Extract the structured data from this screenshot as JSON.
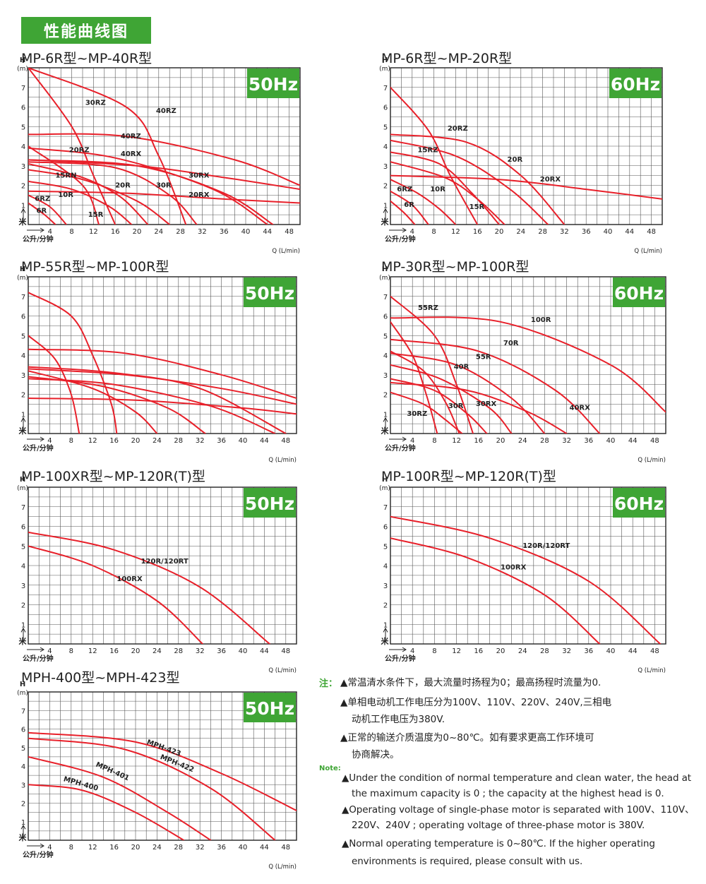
{
  "header": {
    "title": "性能曲线图"
  },
  "notes": {
    "cn_tag": "注：",
    "en_tag": "Note:",
    "cn": [
      [
        "▲常温清水条件下，最大流量时扬程为0；最高扬程时流量为0."
      ],
      [
        "▲单相电动机工作电压分为100V、110V、220V、240V,三相电",
        "动机工作电压为380V."
      ],
      [
        "▲正常的输送介质温度为0~80℃。如有要求更高工作环境可",
        "协商解决。"
      ]
    ],
    "en": [
      [
        "▲Under the condition of normal temperature and clean water, the head at",
        "the maximum capacity is 0 ; the capacity at the highest head is 0."
      ],
      [
        "▲Operating voltage of single-phase motor is separated with 100V、110V、",
        "220V、240V ; operating voltage of three-phase motor is 380V."
      ],
      [
        "▲Normal operating temperature is 0~80℃. If the higher operating",
        "environments is required,  please consult with us."
      ]
    ]
  },
  "chart_data": [
    {
      "id": "c1",
      "type": "line",
      "title": "MP-6R型~MP-40R型",
      "badge": "50Hz",
      "y_label_top": "H",
      "y_unit": "(m)",
      "y_label_bottom": "米",
      "x_label_left": "公升/分钟",
      "x_label_right": "Q (L/min)",
      "xlim": [
        0,
        50
      ],
      "ylim": [
        0,
        8
      ],
      "xticks": [
        4,
        8,
        12,
        16,
        20,
        24,
        28,
        32,
        36,
        40,
        44,
        48
      ],
      "yticks": [
        1,
        2,
        3,
        4,
        5,
        6,
        7
      ],
      "labels": [
        {
          "text": "30RZ",
          "x": 10.5,
          "y": 6.1
        },
        {
          "text": "40RZ",
          "x": 23.5,
          "y": 5.7
        },
        {
          "text": "40RZ",
          "x": 17,
          "y": 4.4
        },
        {
          "text": "20RZ",
          "x": 7.5,
          "y": 3.7
        },
        {
          "text": "40RX",
          "x": 17,
          "y": 3.5
        },
        {
          "text": "15RN",
          "x": 5,
          "y": 2.4
        },
        {
          "text": "30RX",
          "x": 29.5,
          "y": 2.4
        },
        {
          "text": "20R",
          "x": 16,
          "y": 1.9
        },
        {
          "text": "30R",
          "x": 23.5,
          "y": 1.9
        },
        {
          "text": "10R",
          "x": 5.5,
          "y": 1.4
        },
        {
          "text": "20RX",
          "x": 29.5,
          "y": 1.4
        },
        {
          "text": "6RZ",
          "x": 1.2,
          "y": 1.2
        },
        {
          "text": "6R",
          "x": 1.5,
          "y": 0.6
        },
        {
          "text": "15R",
          "x": 11,
          "y": 0.4
        }
      ],
      "series": [
        {
          "x": [
            0,
            8,
            12,
            16
          ],
          "y": [
            8,
            5,
            2.5,
            0
          ]
        },
        {
          "x": [
            0,
            18,
            24,
            29
          ],
          "y": [
            8,
            6,
            3.5,
            0
          ]
        },
        {
          "x": [
            0,
            10,
            13
          ],
          "y": [
            4,
            2,
            0
          ]
        },
        {
          "x": [
            0,
            10,
            17,
            22
          ],
          "y": [
            3.1,
            2.4,
            1.4,
            0
          ]
        },
        {
          "x": [
            0,
            18,
            38,
            50
          ],
          "y": [
            4.6,
            4.5,
            3.3,
            2
          ]
        },
        {
          "x": [
            0,
            20,
            36,
            45
          ],
          "y": [
            3.3,
            3,
            1.6,
            0
          ]
        },
        {
          "x": [
            0,
            16,
            26,
            31
          ],
          "y": [
            3.2,
            2.9,
            1.5,
            0
          ]
        },
        {
          "x": [
            0,
            8,
            15,
            19
          ],
          "y": [
            2.2,
            1.8,
            0.9,
            0
          ]
        },
        {
          "x": [
            0,
            10,
            20,
            26
          ],
          "y": [
            2.8,
            2.3,
            1.2,
            0
          ]
        },
        {
          "x": [
            0,
            4,
            7
          ],
          "y": [
            1.5,
            0.9,
            0
          ]
        },
        {
          "x": [
            0,
            3,
            5
          ],
          "y": [
            1.1,
            0.5,
            0
          ]
        },
        {
          "x": [
            0,
            20,
            36,
            50
          ],
          "y": [
            3.3,
            3,
            2.4,
            1.8
          ]
        },
        {
          "x": [
            0,
            18,
            36,
            50
          ],
          "y": [
            1.7,
            1.6,
            1.3,
            1.1
          ]
        },
        {
          "x": [
            0,
            16,
            34,
            44
          ],
          "y": [
            3.9,
            3.4,
            1.8,
            0
          ]
        }
      ]
    },
    {
      "id": "c2",
      "type": "line",
      "title": "MP-6R型~MP-20R型",
      "badge": "60Hz",
      "y_label_top": "H",
      "y_unit": "(m)",
      "y_label_bottom": "米",
      "x_label_left": "公升/分钟",
      "x_label_right": "Q (L/min)",
      "xlim": [
        0,
        50
      ],
      "ylim": [
        0,
        8
      ],
      "xticks": [
        4,
        8,
        12,
        16,
        20,
        24,
        28,
        32,
        36,
        40,
        44,
        48
      ],
      "yticks": [
        1,
        2,
        3,
        4,
        5,
        6,
        7
      ],
      "labels": [
        {
          "text": "20RZ",
          "x": 10.5,
          "y": 4.8
        },
        {
          "text": "15RZ",
          "x": 5,
          "y": 3.7
        },
        {
          "text": "20R",
          "x": 21.5,
          "y": 3.2
        },
        {
          "text": "20RX",
          "x": 27.5,
          "y": 2.2
        },
        {
          "text": "6RZ",
          "x": 1.2,
          "y": 1.7
        },
        {
          "text": "10R",
          "x": 7.3,
          "y": 1.7
        },
        {
          "text": "6R",
          "x": 2.5,
          "y": 0.9
        },
        {
          "text": "15R",
          "x": 14.5,
          "y": 0.8
        }
      ],
      "series": [
        {
          "x": [
            0,
            7,
            11,
            16
          ],
          "y": [
            7,
            4.8,
            2.5,
            0
          ]
        },
        {
          "x": [
            0,
            14,
            24,
            32
          ],
          "y": [
            4.6,
            4.2,
            2.5,
            0
          ]
        },
        {
          "x": [
            0,
            9,
            15,
            20
          ],
          "y": [
            3.7,
            3.1,
            1.6,
            0
          ]
        },
        {
          "x": [
            0,
            20,
            36,
            50
          ],
          "y": [
            2.5,
            2.3,
            1.8,
            1.3
          ]
        },
        {
          "x": [
            0,
            10,
            16,
            21
          ],
          "y": [
            3.2,
            2.4,
            1.3,
            0
          ]
        },
        {
          "x": [
            0,
            5,
            9,
            12
          ],
          "y": [
            2.3,
            1.6,
            0.8,
            0
          ]
        },
        {
          "x": [
            0,
            4,
            7
          ],
          "y": [
            1.7,
            1,
            0
          ]
        },
        {
          "x": [
            0,
            2.5,
            4.5
          ],
          "y": [
            1.2,
            0.6,
            0
          ]
        },
        {
          "x": [
            0,
            12,
            22,
            29
          ],
          "y": [
            4.3,
            3.5,
            1.8,
            0
          ]
        }
      ]
    },
    {
      "id": "c3",
      "type": "line",
      "title": "MP-55R型~MP-100R型",
      "badge": "50Hz",
      "y_label_top": "H",
      "y_unit": "(m)",
      "y_label_bottom": "米",
      "x_label_left": "公升/分钟",
      "x_label_right": "Q (L/min)",
      "xlim": [
        0,
        50
      ],
      "ylim": [
        0,
        8
      ],
      "xticks": [
        4,
        8,
        12,
        16,
        20,
        24,
        28,
        32,
        36,
        40,
        44,
        48
      ],
      "yticks": [
        1,
        2,
        3,
        4,
        5,
        6,
        7
      ],
      "labels": [],
      "series": [
        {
          "x": [
            0,
            8,
            12,
            15.5,
            16.5
          ],
          "y": [
            7.2,
            6,
            4,
            1.5,
            0
          ]
        },
        {
          "x": [
            0,
            5,
            8,
            9.5
          ],
          "y": [
            5,
            3.8,
            2,
            0
          ]
        },
        {
          "x": [
            0,
            18,
            36,
            50
          ],
          "y": [
            4.3,
            4.1,
            3,
            1.8
          ]
        },
        {
          "x": [
            0,
            16,
            32,
            48
          ],
          "y": [
            3.4,
            3.1,
            2.3,
            0
          ]
        },
        {
          "x": [
            0,
            14,
            26,
            33
          ],
          "y": [
            2.9,
            2.4,
            1.3,
            0
          ]
        },
        {
          "x": [
            0,
            12,
            20,
            24
          ],
          "y": [
            3.2,
            2.3,
            1.1,
            0
          ]
        },
        {
          "x": [
            0,
            16,
            34,
            46
          ],
          "y": [
            2.8,
            2.5,
            1.4,
            0
          ]
        },
        {
          "x": [
            0,
            20,
            40,
            50
          ],
          "y": [
            1.8,
            1.7,
            1.3,
            1
          ]
        },
        {
          "x": [
            0,
            18,
            36,
            50
          ],
          "y": [
            3.3,
            3,
            2.3,
            1.5
          ]
        }
      ]
    },
    {
      "id": "c4",
      "type": "line",
      "title": "MP-30R型~MP-100R型",
      "badge": "60Hz",
      "y_label_top": "H",
      "y_unit": "(m)",
      "y_label_bottom": "米",
      "x_label_left": "公升/分钟",
      "x_label_right": "Q (L/min)",
      "xlim": [
        0,
        50
      ],
      "ylim": [
        0,
        8
      ],
      "xticks": [
        4,
        8,
        12,
        16,
        20,
        24,
        28,
        32,
        36,
        40,
        44,
        48
      ],
      "yticks": [
        1,
        2,
        3,
        4,
        5,
        6,
        7
      ],
      "labels": [
        {
          "text": "55RZ",
          "x": 5,
          "y": 6.3
        },
        {
          "text": "100R",
          "x": 25.5,
          "y": 5.7
        },
        {
          "text": "70R",
          "x": 20.5,
          "y": 4.5
        },
        {
          "text": "55R",
          "x": 15.5,
          "y": 3.8
        },
        {
          "text": "40R",
          "x": 11.5,
          "y": 3.3
        },
        {
          "text": "30R",
          "x": 10.5,
          "y": 1.3
        },
        {
          "text": "30RX",
          "x": 15.5,
          "y": 1.4
        },
        {
          "text": "40RX",
          "x": 32.5,
          "y": 1.2
        },
        {
          "text": "30RZ",
          "x": 3,
          "y": 0.9
        }
      ],
      "series": [
        {
          "x": [
            0,
            20,
            40,
            50
          ],
          "y": [
            5.9,
            5.7,
            3.5,
            1.1
          ]
        },
        {
          "x": [
            0,
            8,
            12,
            15
          ],
          "y": [
            7,
            5,
            2.5,
            0
          ]
        },
        {
          "x": [
            0,
            4,
            6.5,
            8.5
          ],
          "y": [
            5.7,
            4,
            2,
            0
          ]
        },
        {
          "x": [
            0,
            6,
            10,
            12.5
          ],
          "y": [
            4.2,
            3.2,
            1.6,
            0
          ]
        },
        {
          "x": [
            0,
            16,
            30,
            38
          ],
          "y": [
            4.8,
            4.2,
            2.2,
            0
          ]
        },
        {
          "x": [
            0,
            12,
            22,
            28
          ],
          "y": [
            4.1,
            3.5,
            1.8,
            0
          ]
        },
        {
          "x": [
            0,
            9,
            18,
            22
          ],
          "y": [
            3.5,
            2.8,
            1.3,
            0
          ]
        },
        {
          "x": [
            0,
            8,
            14,
            17.5
          ],
          "y": [
            2.8,
            2.2,
            1,
            0
          ]
        },
        {
          "x": [
            0,
            14,
            25,
            32
          ],
          "y": [
            2.6,
            2.2,
            1.1,
            0
          ]
        },
        {
          "x": [
            0,
            6,
            10,
            13
          ],
          "y": [
            2.1,
            1.5,
            0.7,
            0
          ]
        }
      ]
    },
    {
      "id": "c5",
      "type": "line",
      "title": "MP-100XR型~MP-120R(T)型",
      "badge": "50Hz",
      "y_label_top": "H",
      "y_unit": "(m)",
      "y_label_bottom": "米",
      "x_label_left": "公升/分钟",
      "x_label_right": "Q (L/min)",
      "xlim": [
        0,
        50
      ],
      "ylim": [
        0,
        8
      ],
      "xticks": [
        4,
        8,
        12,
        16,
        20,
        24,
        28,
        32,
        36,
        40,
        44,
        48
      ],
      "yticks": [
        1,
        2,
        3,
        4,
        5,
        6,
        7
      ],
      "labels": [
        {
          "text": "120R/120RT",
          "x": 21,
          "y": 4.1
        },
        {
          "text": "100RX",
          "x": 16.5,
          "y": 3.2
        }
      ],
      "series": [
        {
          "x": [
            0,
            16,
            32,
            45
          ],
          "y": [
            5.7,
            4.8,
            2.9,
            0
          ]
        },
        {
          "x": [
            0,
            12,
            24,
            32.5
          ],
          "y": [
            5,
            4,
            2.2,
            0
          ]
        }
      ]
    },
    {
      "id": "c6",
      "type": "line",
      "title": "MP-100R型~MP-120R(T)型",
      "badge": "60Hz",
      "y_label_top": "H",
      "y_unit": "(m)",
      "y_label_bottom": "米",
      "x_label_left": "公升/分钟",
      "x_label_right": "Q (L/min)",
      "xlim": [
        0,
        50
      ],
      "ylim": [
        0,
        8
      ],
      "xticks": [
        4,
        8,
        12,
        16,
        20,
        24,
        28,
        32,
        36,
        40,
        44,
        48
      ],
      "yticks": [
        1,
        2,
        3,
        4,
        5,
        6,
        7
      ],
      "labels": [
        {
          "text": "120R/120RT",
          "x": 24,
          "y": 4.9
        },
        {
          "text": "100RX",
          "x": 20,
          "y": 3.8
        }
      ],
      "series": [
        {
          "x": [
            0,
            18,
            36,
            49
          ],
          "y": [
            6.5,
            5.4,
            3.2,
            0
          ]
        },
        {
          "x": [
            0,
            14,
            28,
            38
          ],
          "y": [
            5.4,
            4.4,
            2.5,
            0
          ]
        }
      ]
    },
    {
      "id": "c7",
      "type": "line",
      "title": "MPH-400型~MPH-423型",
      "badge": "50Hz",
      "y_label_top": "H",
      "y_unit": "(m)",
      "y_label_bottom": "米",
      "x_label_left": "公升/分钟",
      "x_label_right": "Q (L/min)",
      "xlim": [
        0,
        50
      ],
      "ylim": [
        0,
        8
      ],
      "xticks": [
        4,
        8,
        12,
        16,
        20,
        24,
        28,
        32,
        36,
        40,
        44,
        48
      ],
      "yticks": [
        1,
        2,
        3,
        4,
        5,
        6,
        7
      ],
      "labels": [
        {
          "text": "MPH-423",
          "x": 22,
          "y": 5.2,
          "rotate": 20
        },
        {
          "text": "MPH-422",
          "x": 24.5,
          "y": 4.4,
          "rotate": 22
        },
        {
          "text": "MPH-401",
          "x": 12.5,
          "y": 4,
          "rotate": 24
        },
        {
          "text": "MPH-400",
          "x": 6.5,
          "y": 3.2,
          "rotate": 16
        }
      ],
      "series": [
        {
          "x": [
            0,
            20,
            36,
            50
          ],
          "y": [
            5.8,
            5.3,
            3.6,
            1.6
          ]
        },
        {
          "x": [
            0,
            18,
            34,
            46
          ],
          "y": [
            5.5,
            4.9,
            2.8,
            0
          ]
        },
        {
          "x": [
            0,
            14,
            26,
            34
          ],
          "y": [
            4.5,
            3.4,
            1.5,
            0
          ]
        },
        {
          "x": [
            0,
            10,
            20,
            29
          ],
          "y": [
            3,
            2.7,
            1.5,
            0
          ]
        }
      ]
    }
  ]
}
